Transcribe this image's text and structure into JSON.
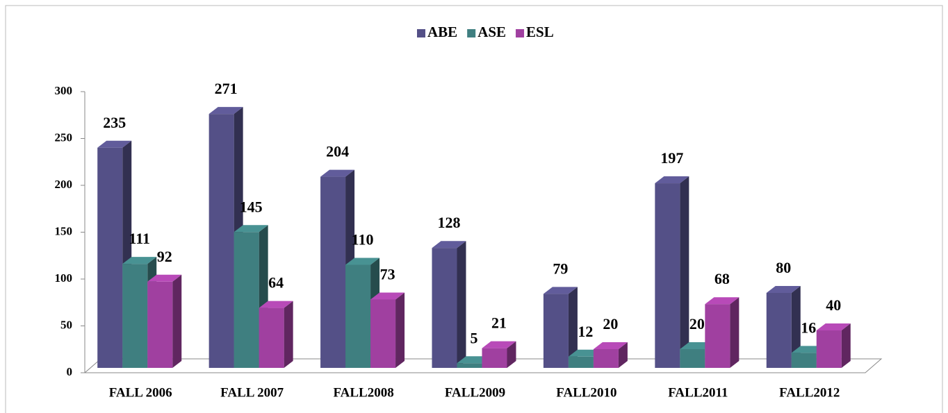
{
  "chart_data": {
    "type": "bar3d",
    "categories": [
      "FALL 2006",
      "FALL 2007",
      "FALL2008",
      "FALL2009",
      "FALL2010",
      "FALL2011",
      "FALL2012"
    ],
    "series": [
      {
        "name": "ABE",
        "color": "#545087",
        "values": [
          235,
          271,
          204,
          128,
          79,
          197,
          80
        ]
      },
      {
        "name": "ASE",
        "color": "#3f7f80",
        "values": [
          111,
          145,
          110,
          5,
          12,
          20,
          16
        ]
      },
      {
        "name": "ESL",
        "color": "#a040a0",
        "values": [
          92,
          64,
          73,
          21,
          20,
          68,
          40
        ]
      }
    ],
    "ylim": [
      0,
      300
    ],
    "yticks": [
      0,
      50,
      100,
      150,
      200,
      250,
      300
    ],
    "legend": "top"
  }
}
